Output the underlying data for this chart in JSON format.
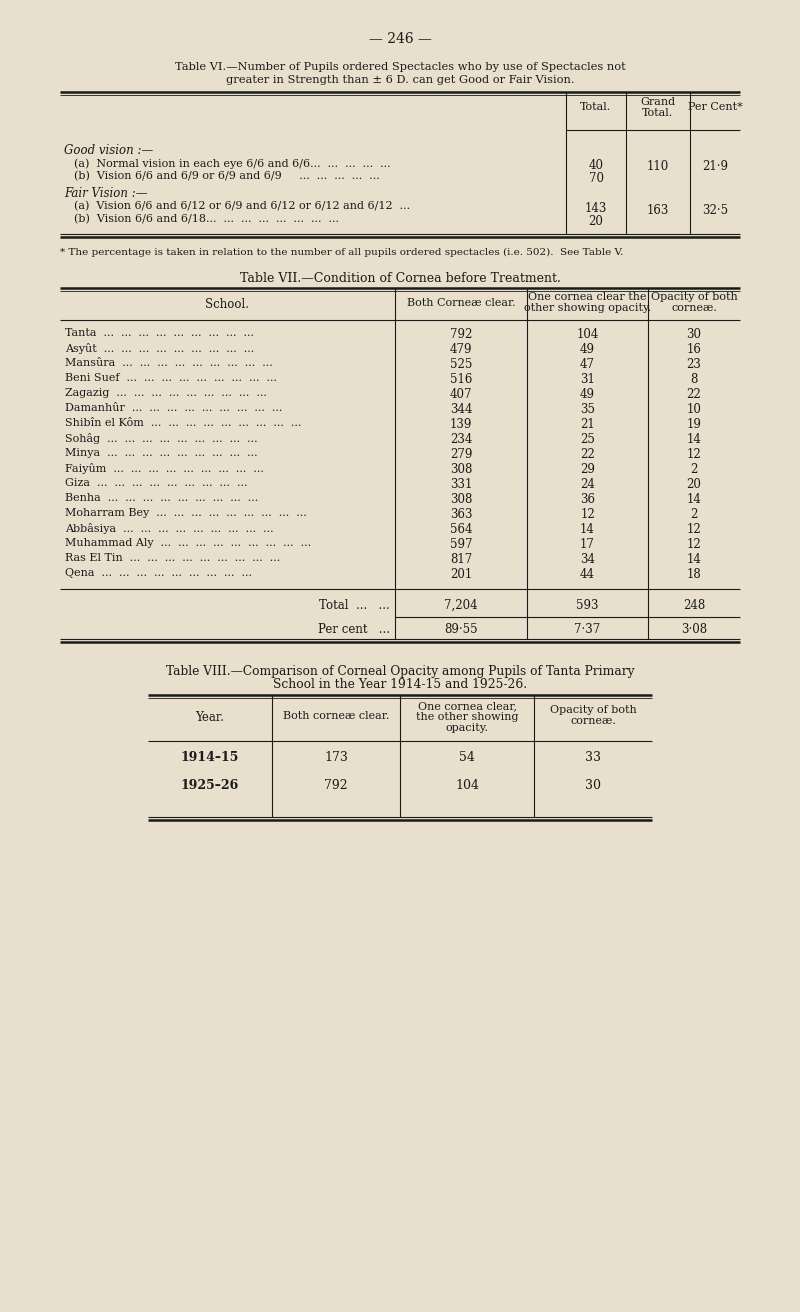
{
  "page_number": "— 246 —",
  "bg_color": "#e8e0cc",
  "text_color": "#1a1a1a",
  "table6_title_line1": "Table VI.—Number of Pupils ordered Spectacles who by use of Spectacles not",
  "table6_title_line2": "greater in Strength than ± 6 D. can get Good or Fair Vision.",
  "table6_section1": "Good vision :—",
  "table6_row1a_label": "(a)  Normal vision in each eye 6/6 and 6/6...  ...  ...  ...  ...",
  "table6_row1a_val": "40",
  "table6_row1b_label": "(b)  Vision 6/6 and 6/9 or 6/9 and 6/9     ...  ...  ...  ...  ...",
  "table6_row1b_val": "70",
  "table6_grand1": "110",
  "table6_pct1": "21·9",
  "table6_section2": "Fair Vision :—",
  "table6_row2a_label": "(a)  Vision 6/6 and 6/12 or 6/9 and 6/12 or 6/12 and 6/12  ...",
  "table6_row2a_val": "143",
  "table6_row2b_label": "(b)  Vision 6/6 and 6/18...  ...  ...  ...  ...  ...  ...  ...",
  "table6_row2b_val": "20",
  "table6_grand2": "163",
  "table6_pct2": "32·5",
  "table6_col_total": "Total.",
  "table6_col_grand": "Grand",
  "table6_col_grand2": "Total.",
  "table6_col_pct": "Per Cent*",
  "table6_footnote": "* The percentage is taken in relation to the number of all pupils ordered spectacles (i.e. 502).  See Table V.",
  "table7_title": "Table VII.—Condition of Cornea before Treatment.",
  "table7_hdr_school": "School.",
  "table7_hdr_bc": "Both Corneæ clear.",
  "table7_hdr_oc1": "One cornea clear the",
  "table7_hdr_oc2": "other showing opacity.",
  "table7_hdr_ob1": "Opacity of both",
  "table7_hdr_ob2": "corneæ.",
  "table7_schools": [
    "Tanta",
    "Asyût",
    "Mansûra",
    "Beni Suef",
    "Zagazig",
    "Damanhûr",
    "Shibîn el Kôm",
    "Sohâg",
    "Minya",
    "Faiyûm",
    "Giza",
    "Benha",
    "Moharram Bey",
    "Abbâsiya",
    "Muhammad Aly",
    "Ras El Tin",
    "Qena"
  ],
  "table7_both_clear": [
    792,
    479,
    525,
    516,
    407,
    344,
    139,
    234,
    279,
    308,
    331,
    308,
    363,
    564,
    597,
    817,
    201
  ],
  "table7_one_clear": [
    104,
    49,
    47,
    31,
    49,
    35,
    21,
    25,
    22,
    29,
    24,
    36,
    12,
    14,
    17,
    34,
    44
  ],
  "table7_opacity_both": [
    30,
    16,
    23,
    8,
    22,
    10,
    19,
    14,
    12,
    2,
    20,
    14,
    2,
    12,
    12,
    14,
    18
  ],
  "table7_total_both_clear": "7,204",
  "table7_total_one_clear": "593",
  "table7_total_opacity": "248",
  "table7_pct_both_clear": "89·55",
  "table7_pct_one_clear": "7·37",
  "table7_pct_opacity": "3·08",
  "table7_total_label": "Total  ...   ...",
  "table7_pct_label": "Per cent   ...",
  "table8_title_line1": "Table VIII.—Comparison of Corneal Opacity among Pupils of Tanta Primary",
  "table8_title_line2": "School in the Year 1914-15 and 1925-26.",
  "table8_hdr_year": "Year.",
  "table8_hdr_bc": "Both corneæ clear.",
  "table8_hdr_oc1": "One cornea clear,",
  "table8_hdr_oc2": "the other showing",
  "table8_hdr_oc3": "opacity.",
  "table8_hdr_ob1": "Opacity of both",
  "table8_hdr_ob2": "corneæ.",
  "table8_years": [
    "1914–15",
    "1925–26"
  ],
  "table8_both_clear": [
    173,
    792
  ],
  "table8_one_clear": [
    54,
    104
  ],
  "table8_opacity_both": [
    33,
    30
  ]
}
